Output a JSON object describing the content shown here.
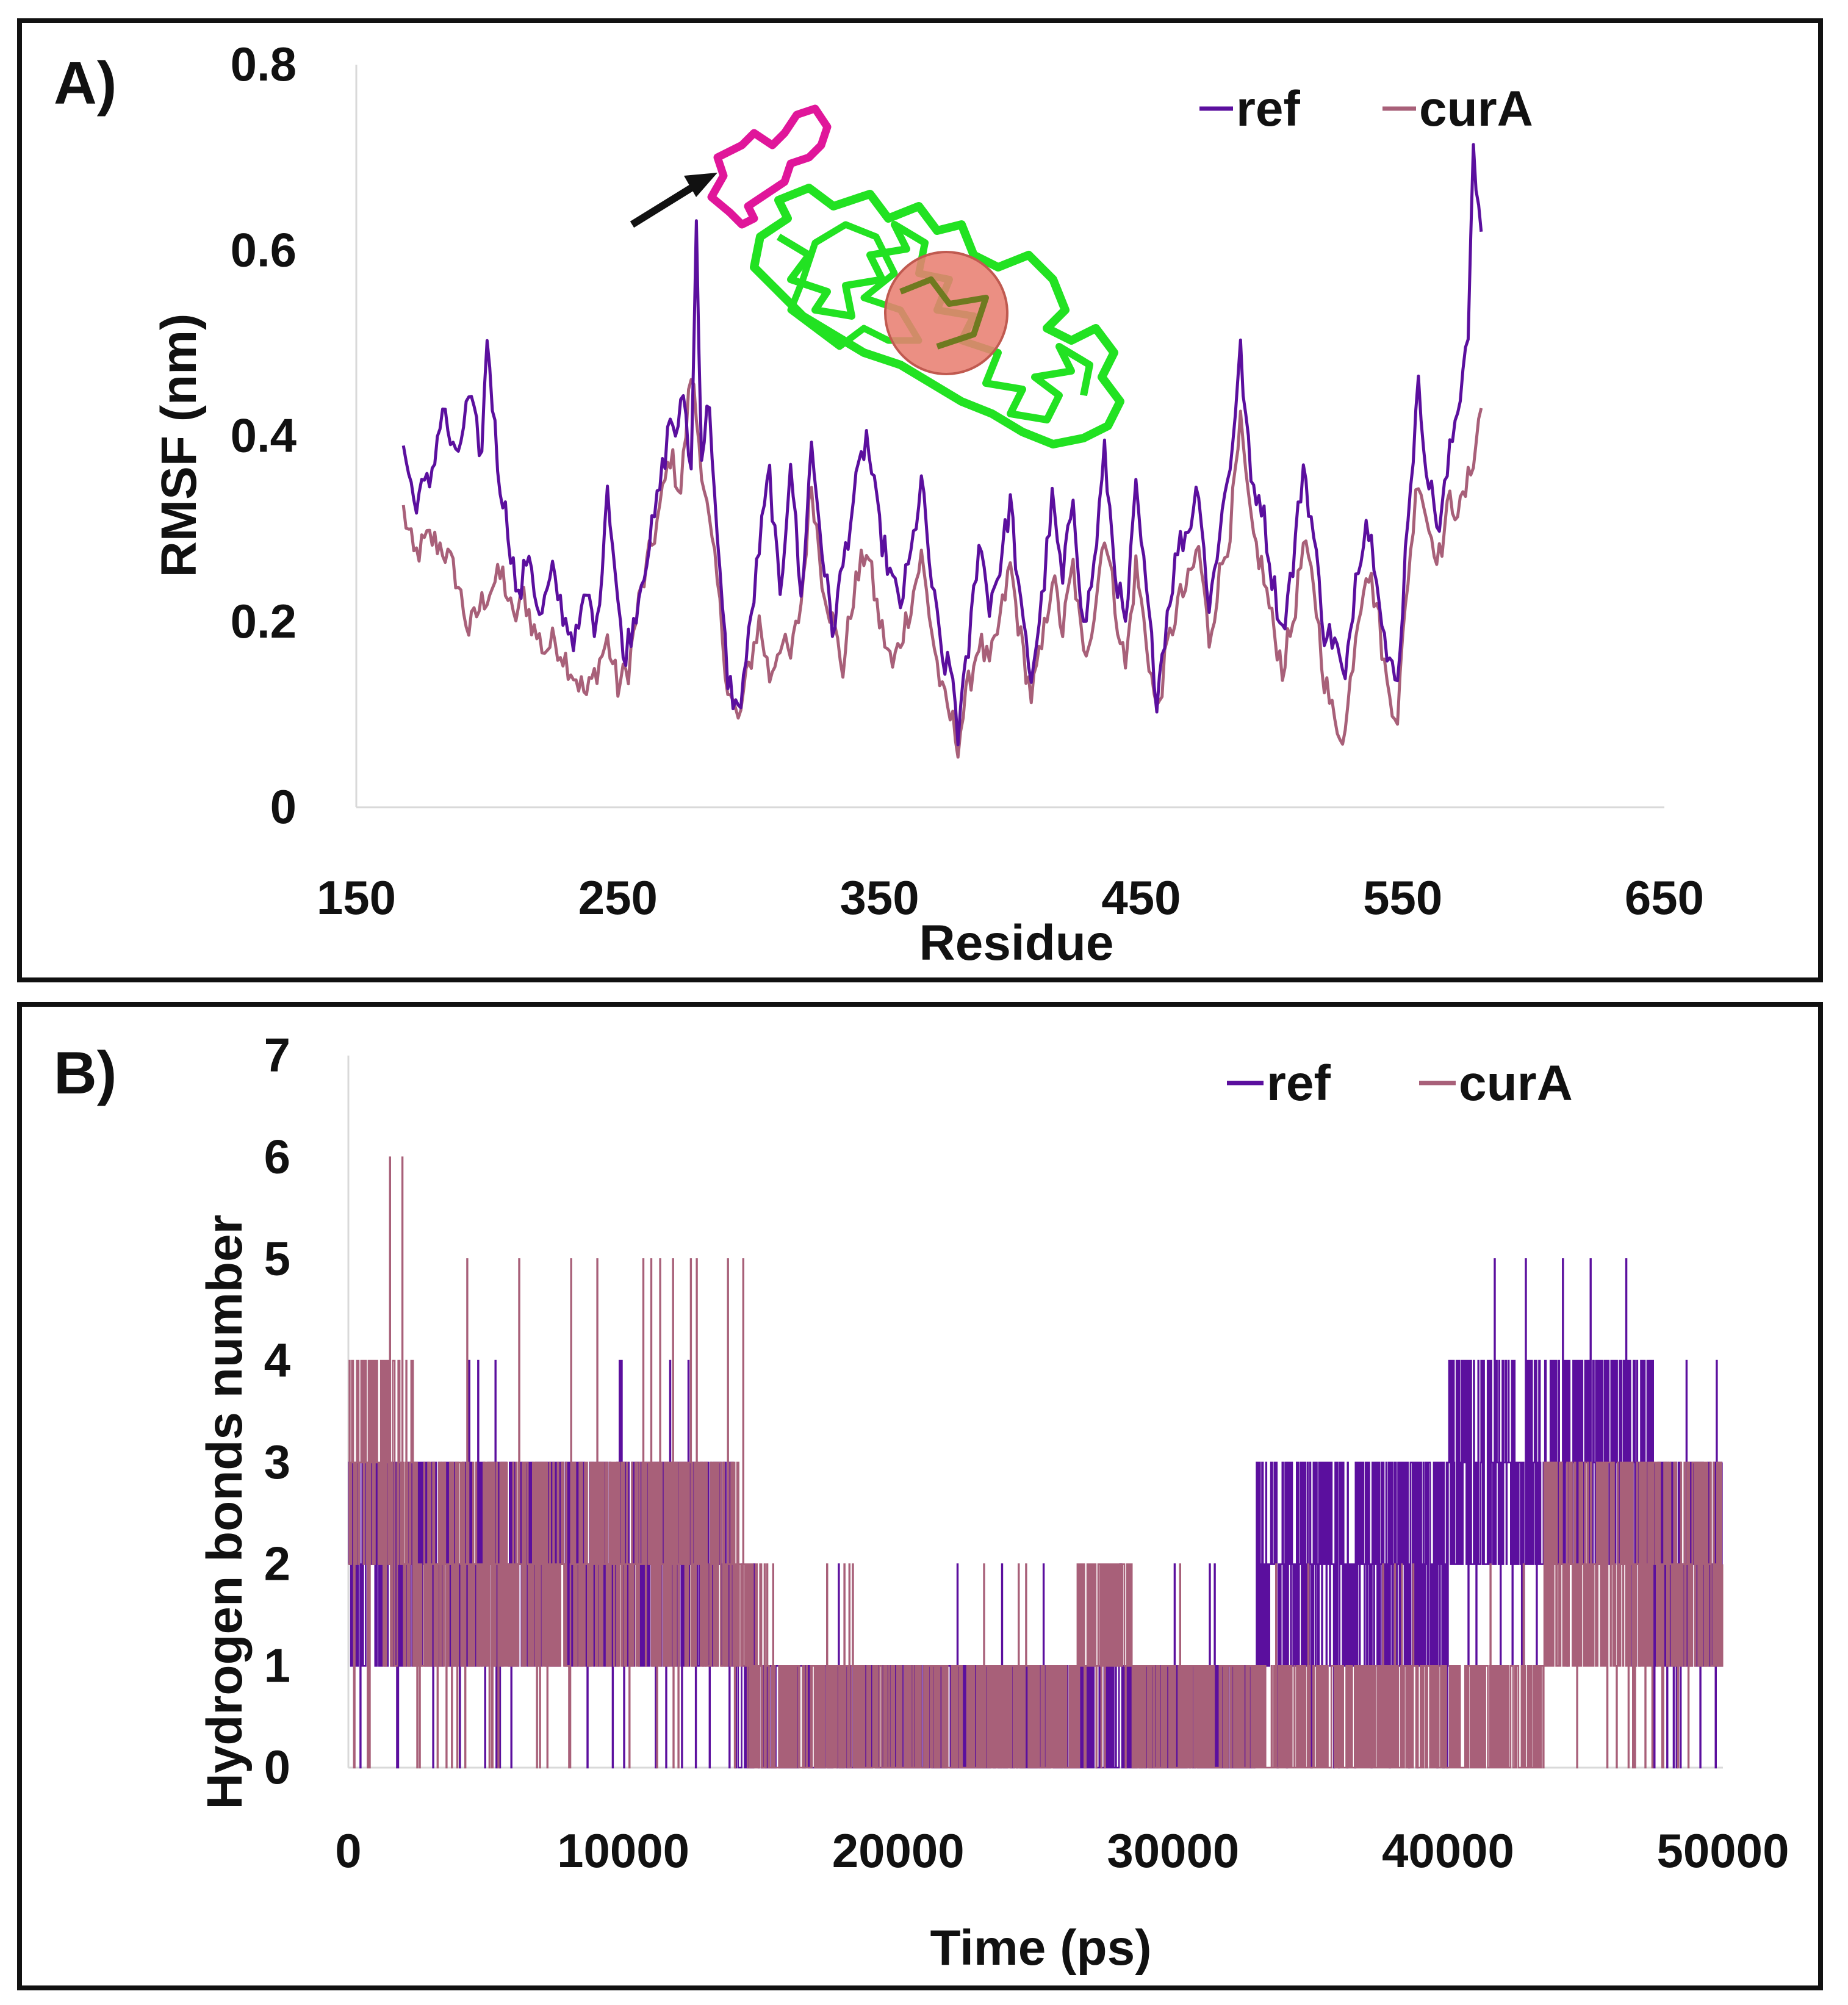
{
  "colors": {
    "ref": "#5b0f9e",
    "curA": "#a86079",
    "axis": "#d9d9d9",
    "protein": "#22e222",
    "loop": "#e0169a",
    "ligand": "#e87f72"
  },
  "inset_icon": "protein-structure-with-ligand-icon",
  "chart_data": [
    {
      "type": "line",
      "panel_label": "A)",
      "title": "",
      "xlabel": "Residue",
      "ylabel": "RMSF (nm)",
      "xlim": [
        150,
        650
      ],
      "ylim": [
        0,
        0.8
      ],
      "xticks": [
        "150",
        "250",
        "350",
        "450",
        "550",
        "650"
      ],
      "yticks": [
        "0",
        "0.2",
        "0.4",
        "0.6",
        "0.8"
      ],
      "legend_position": "top-right",
      "x_range": [
        168,
        580
      ],
      "series": [
        {
          "name": "ref",
          "keypoints": [
            [
              168,
              0.39
            ],
            [
              172,
              0.33
            ],
            [
              178,
              0.35
            ],
            [
              183,
              0.43
            ],
            [
              188,
              0.37
            ],
            [
              193,
              0.44
            ],
            [
              198,
              0.38
            ],
            [
              200,
              0.51
            ],
            [
              204,
              0.37
            ],
            [
              208,
              0.3
            ],
            [
              212,
              0.22
            ],
            [
              216,
              0.28
            ],
            [
              220,
              0.2
            ],
            [
              225,
              0.25
            ],
            [
              230,
              0.2
            ],
            [
              234,
              0.18
            ],
            [
              238,
              0.23
            ],
            [
              242,
              0.19
            ],
            [
              246,
              0.35
            ],
            [
              250,
              0.22
            ],
            [
              252,
              0.16
            ],
            [
              256,
              0.2
            ],
            [
              260,
              0.26
            ],
            [
              264,
              0.31
            ],
            [
              268,
              0.38
            ],
            [
              270,
              0.42
            ],
            [
              273,
              0.4
            ],
            [
              275,
              0.45
            ],
            [
              278,
              0.36
            ],
            [
              280,
              0.63
            ],
            [
              282,
              0.38
            ],
            [
              285,
              0.44
            ],
            [
              288,
              0.28
            ],
            [
              292,
              0.14
            ],
            [
              296,
              0.1
            ],
            [
              300,
              0.18
            ],
            [
              304,
              0.28
            ],
            [
              308,
              0.36
            ],
            [
              312,
              0.22
            ],
            [
              316,
              0.38
            ],
            [
              320,
              0.22
            ],
            [
              324,
              0.39
            ],
            [
              328,
              0.28
            ],
            [
              332,
              0.19
            ],
            [
              336,
              0.26
            ],
            [
              340,
              0.33
            ],
            [
              345,
              0.4
            ],
            [
              350,
              0.3
            ],
            [
              355,
              0.24
            ],
            [
              358,
              0.22
            ],
            [
              362,
              0.27
            ],
            [
              366,
              0.35
            ],
            [
              370,
              0.24
            ],
            [
              374,
              0.16
            ],
            [
              378,
              0.14
            ],
            [
              380,
              0.08
            ],
            [
              384,
              0.17
            ],
            [
              388,
              0.29
            ],
            [
              392,
              0.22
            ],
            [
              396,
              0.26
            ],
            [
              400,
              0.33
            ],
            [
              404,
              0.21
            ],
            [
              408,
              0.14
            ],
            [
              412,
              0.22
            ],
            [
              416,
              0.33
            ],
            [
              420,
              0.24
            ],
            [
              424,
              0.34
            ],
            [
              428,
              0.19
            ],
            [
              432,
              0.26
            ],
            [
              436,
              0.38
            ],
            [
              440,
              0.26
            ],
            [
              444,
              0.19
            ],
            [
              448,
              0.34
            ],
            [
              452,
              0.23
            ],
            [
              456,
              0.12
            ],
            [
              460,
              0.21
            ],
            [
              464,
              0.28
            ],
            [
              468,
              0.3
            ],
            [
              472,
              0.35
            ],
            [
              476,
              0.21
            ],
            [
              480,
              0.3
            ],
            [
              484,
              0.37
            ],
            [
              488,
              0.49
            ],
            [
              492,
              0.35
            ],
            [
              496,
              0.33
            ],
            [
              500,
              0.25
            ],
            [
              504,
              0.19
            ],
            [
              508,
              0.26
            ],
            [
              512,
              0.37
            ],
            [
              516,
              0.29
            ],
            [
              520,
              0.19
            ],
            [
              524,
              0.18
            ],
            [
              528,
              0.13
            ],
            [
              532,
              0.25
            ],
            [
              536,
              0.31
            ],
            [
              540,
              0.26
            ],
            [
              544,
              0.16
            ],
            [
              548,
              0.13
            ],
            [
              552,
              0.32
            ],
            [
              556,
              0.45
            ],
            [
              560,
              0.35
            ],
            [
              564,
              0.3
            ],
            [
              568,
              0.38
            ],
            [
              572,
              0.45
            ],
            [
              575,
              0.52
            ],
            [
              577,
              0.7
            ],
            [
              580,
              0.62
            ]
          ]
        },
        {
          "name": "curA",
          "keypoints": [
            [
              168,
              0.32
            ],
            [
              172,
              0.27
            ],
            [
              178,
              0.29
            ],
            [
              183,
              0.28
            ],
            [
              188,
              0.25
            ],
            [
              193,
              0.19
            ],
            [
              198,
              0.22
            ],
            [
              202,
              0.24
            ],
            [
              206,
              0.25
            ],
            [
              210,
              0.2
            ],
            [
              214,
              0.23
            ],
            [
              218,
              0.19
            ],
            [
              222,
              0.17
            ],
            [
              226,
              0.18
            ],
            [
              230,
              0.16
            ],
            [
              234,
              0.14
            ],
            [
              238,
              0.12
            ],
            [
              242,
              0.15
            ],
            [
              246,
              0.18
            ],
            [
              250,
              0.13
            ],
            [
              254,
              0.15
            ],
            [
              258,
              0.22
            ],
            [
              262,
              0.27
            ],
            [
              266,
              0.32
            ],
            [
              270,
              0.38
            ],
            [
              274,
              0.34
            ],
            [
              278,
              0.47
            ],
            [
              282,
              0.37
            ],
            [
              285,
              0.3
            ],
            [
              288,
              0.24
            ],
            [
              292,
              0.13
            ],
            [
              296,
              0.09
            ],
            [
              300,
              0.15
            ],
            [
              304,
              0.2
            ],
            [
              308,
              0.14
            ],
            [
              312,
              0.18
            ],
            [
              316,
              0.16
            ],
            [
              320,
              0.22
            ],
            [
              324,
              0.35
            ],
            [
              328,
              0.25
            ],
            [
              332,
              0.2
            ],
            [
              336,
              0.15
            ],
            [
              340,
              0.23
            ],
            [
              345,
              0.28
            ],
            [
              350,
              0.2
            ],
            [
              355,
              0.15
            ],
            [
              358,
              0.18
            ],
            [
              362,
              0.22
            ],
            [
              366,
              0.27
            ],
            [
              370,
              0.19
            ],
            [
              374,
              0.12
            ],
            [
              378,
              0.09
            ],
            [
              380,
              0.07
            ],
            [
              384,
              0.13
            ],
            [
              388,
              0.18
            ],
            [
              392,
              0.15
            ],
            [
              396,
              0.2
            ],
            [
              400,
              0.26
            ],
            [
              404,
              0.18
            ],
            [
              408,
              0.12
            ],
            [
              412,
              0.17
            ],
            [
              416,
              0.25
            ],
            [
              420,
              0.19
            ],
            [
              424,
              0.26
            ],
            [
              428,
              0.16
            ],
            [
              432,
              0.21
            ],
            [
              436,
              0.3
            ],
            [
              440,
              0.22
            ],
            [
              444,
              0.15
            ],
            [
              448,
              0.26
            ],
            [
              452,
              0.18
            ],
            [
              456,
              0.1
            ],
            [
              460,
              0.17
            ],
            [
              464,
              0.22
            ],
            [
              468,
              0.24
            ],
            [
              472,
              0.28
            ],
            [
              476,
              0.18
            ],
            [
              480,
              0.25
            ],
            [
              484,
              0.3
            ],
            [
              488,
              0.41
            ],
            [
              492,
              0.3
            ],
            [
              496,
              0.26
            ],
            [
              500,
              0.2
            ],
            [
              504,
              0.15
            ],
            [
              508,
              0.2
            ],
            [
              512,
              0.28
            ],
            [
              516,
              0.24
            ],
            [
              520,
              0.14
            ],
            [
              524,
              0.09
            ],
            [
              528,
              0.08
            ],
            [
              532,
              0.19
            ],
            [
              536,
              0.26
            ],
            [
              540,
              0.22
            ],
            [
              544,
              0.13
            ],
            [
              548,
              0.1
            ],
            [
              552,
              0.25
            ],
            [
              556,
              0.36
            ],
            [
              560,
              0.3
            ],
            [
              564,
              0.27
            ],
            [
              568,
              0.33
            ],
            [
              572,
              0.32
            ],
            [
              575,
              0.35
            ],
            [
              577,
              0.38
            ],
            [
              580,
              0.43
            ]
          ]
        }
      ]
    },
    {
      "type": "line",
      "panel_label": "B)",
      "title": "",
      "xlabel": "Time (ps)",
      "ylabel": "Hydrogen bonds number",
      "xlim": [
        0,
        50000
      ],
      "ylim": [
        0,
        7
      ],
      "xticks": [
        "0",
        "10000",
        "20000",
        "30000",
        "40000",
        "50000"
      ],
      "yticks": [
        "0",
        "1",
        "2",
        "3",
        "4",
        "5",
        "6",
        "7"
      ],
      "legend_position": "top-right",
      "series": [
        {
          "name": "ref",
          "segments": [
            [
              0,
              14000,
              1,
              3,
              0,
              4
            ],
            [
              14000,
              33000,
              0,
              1,
              0,
              2
            ],
            [
              33000,
              40000,
              1,
              3,
              0,
              3
            ],
            [
              40000,
              47500,
              2,
              4,
              1,
              5
            ],
            [
              47500,
              50000,
              1,
              3,
              0,
              4
            ]
          ]
        },
        {
          "name": "curA",
          "segments": [
            [
              0,
              1000,
              2,
              4,
              0,
              4
            ],
            [
              1000,
              2500,
              1,
              4,
              0,
              6
            ],
            [
              2500,
              14500,
              1,
              3,
              0,
              5
            ],
            [
              14500,
              15300,
              0,
              2,
              0,
              2
            ],
            [
              15300,
              26500,
              0,
              1,
              0,
              2
            ],
            [
              26500,
              28500,
              1,
              2,
              0,
              2
            ],
            [
              28500,
              43500,
              0,
              1,
              0,
              2
            ],
            [
              43500,
              50000,
              1,
              3,
              0,
              3
            ]
          ]
        }
      ]
    }
  ]
}
